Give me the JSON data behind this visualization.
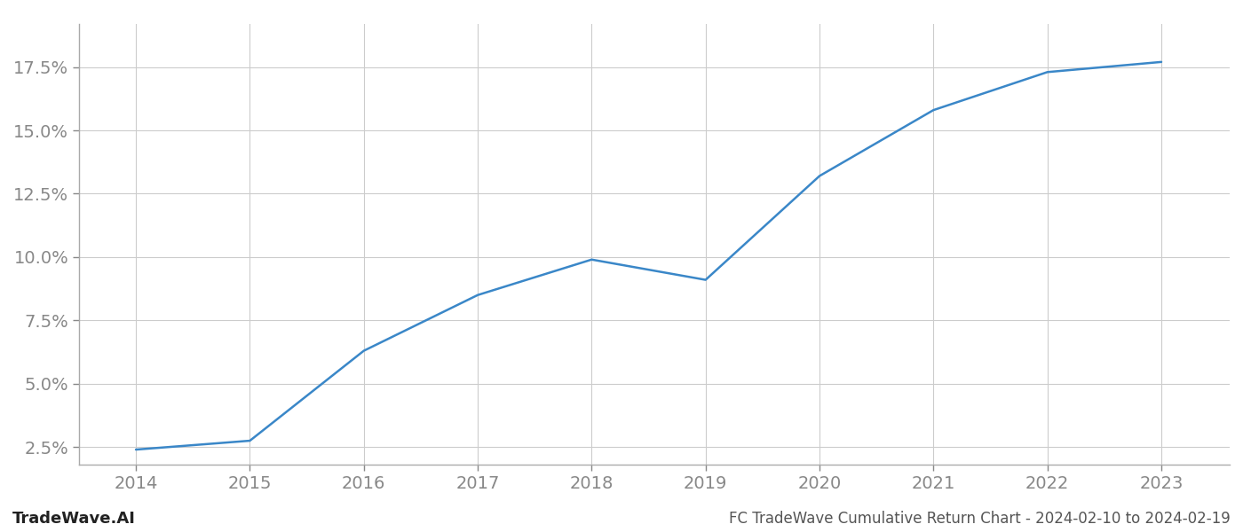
{
  "x": [
    2014,
    2015,
    2016,
    2017,
    2018,
    2019,
    2020,
    2021,
    2022,
    2023
  ],
  "y": [
    2.4,
    2.75,
    6.3,
    8.5,
    9.9,
    9.1,
    13.2,
    15.8,
    17.3,
    17.7
  ],
  "line_color": "#3a87c8",
  "line_width": 1.8,
  "background_color": "#ffffff",
  "grid_color": "#cccccc",
  "title": "FC TradeWave Cumulative Return Chart - 2024-02-10 to 2024-02-19",
  "watermark_left": "TradeWave.AI",
  "xlim": [
    2013.5,
    2023.6
  ],
  "ylim": [
    1.8,
    19.2
  ],
  "yticks": [
    2.5,
    5.0,
    7.5,
    10.0,
    12.5,
    15.0,
    17.5
  ],
  "xticks": [
    2014,
    2015,
    2016,
    2017,
    2018,
    2019,
    2020,
    2021,
    2022,
    2023
  ],
  "tick_label_color": "#888888",
  "title_color": "#555555",
  "watermark_color": "#222222",
  "tick_fontsize": 14,
  "title_fontsize": 12,
  "watermark_fontsize": 13
}
